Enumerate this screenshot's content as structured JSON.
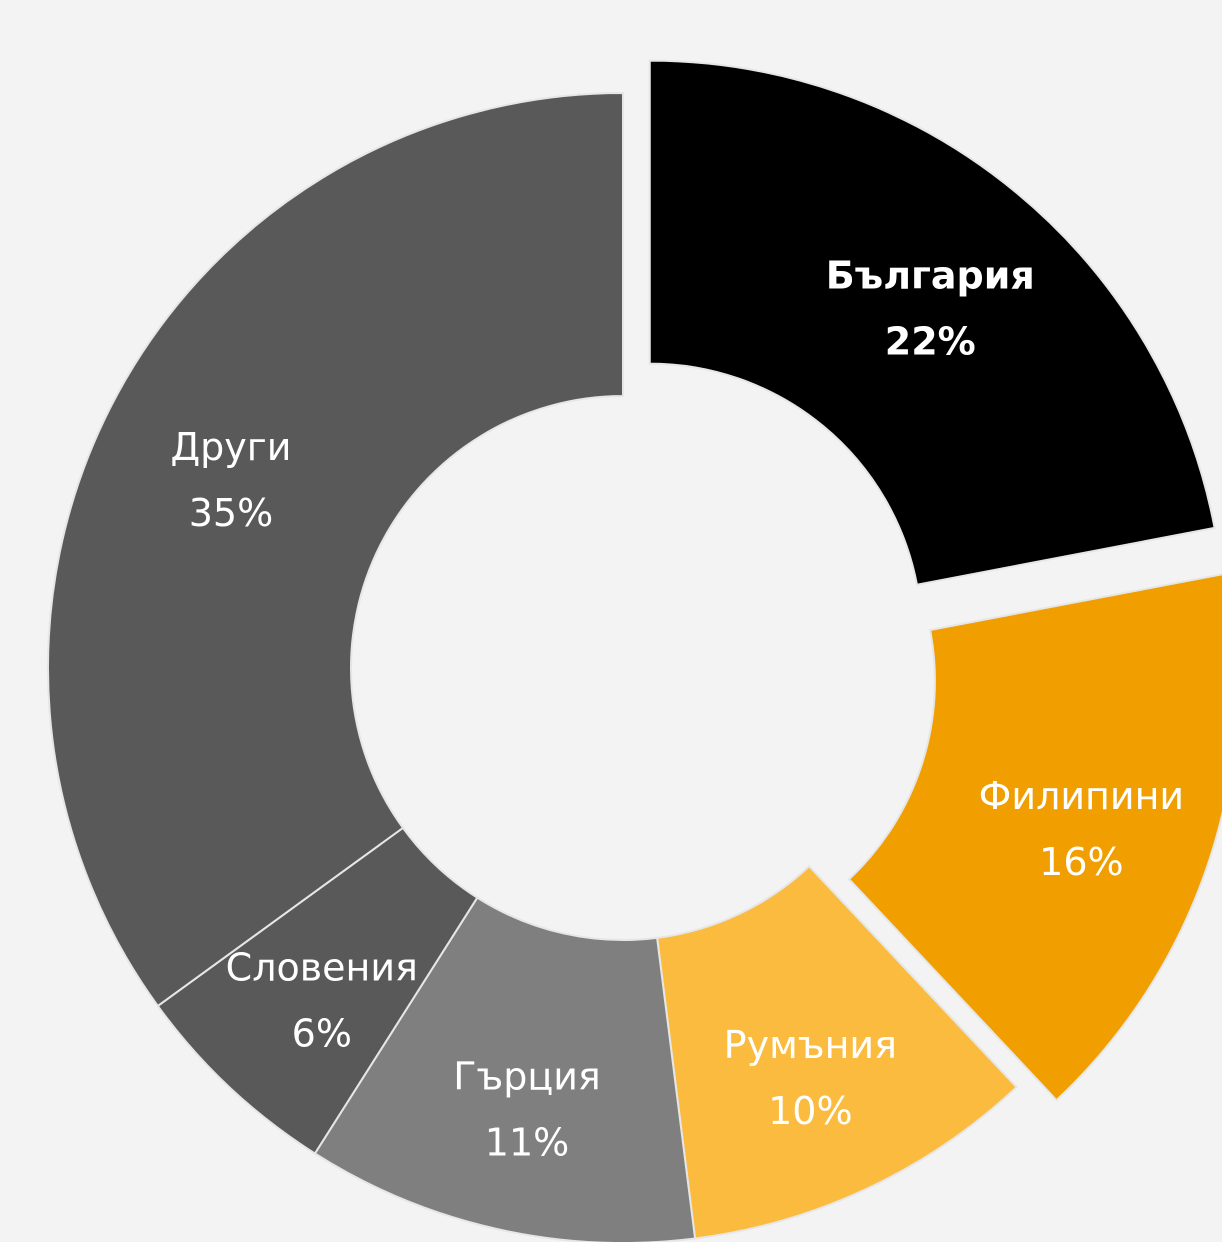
{
  "chart_data": {
    "type": "pie",
    "variant": "donut",
    "slices": [
      {
        "label": "България",
        "value": 22,
        "value_label": "22%",
        "color": "#000000",
        "text_color": "#ffffff",
        "exploded": true
      },
      {
        "label": "Филипини",
        "value": 16,
        "value_label": "16%",
        "color": "#f09e00",
        "text_color": "#ffffff",
        "exploded": true
      },
      {
        "label": "Румъния",
        "value": 10,
        "value_label": "10%",
        "color": "#fbbb3f",
        "text_color": "#ffffff",
        "exploded": false
      },
      {
        "label": "Гърция",
        "value": 11,
        "value_label": "11%",
        "color": "#7f7f7f",
        "text_color": "#ffffff",
        "exploded": false
      },
      {
        "label": "Словения",
        "value": 6,
        "value_label": "6%",
        "color": "#595959",
        "text_color": "#ffffff",
        "exploded": false
      },
      {
        "label": "Други",
        "value": 35,
        "value_label": "35%",
        "color": "#595959",
        "text_color": "#ffffff",
        "exploded": false
      }
    ],
    "start_angle_deg": 0,
    "direction": "clockwise",
    "background": "#f3f3f3",
    "separator_color": "#e6e6e6"
  }
}
